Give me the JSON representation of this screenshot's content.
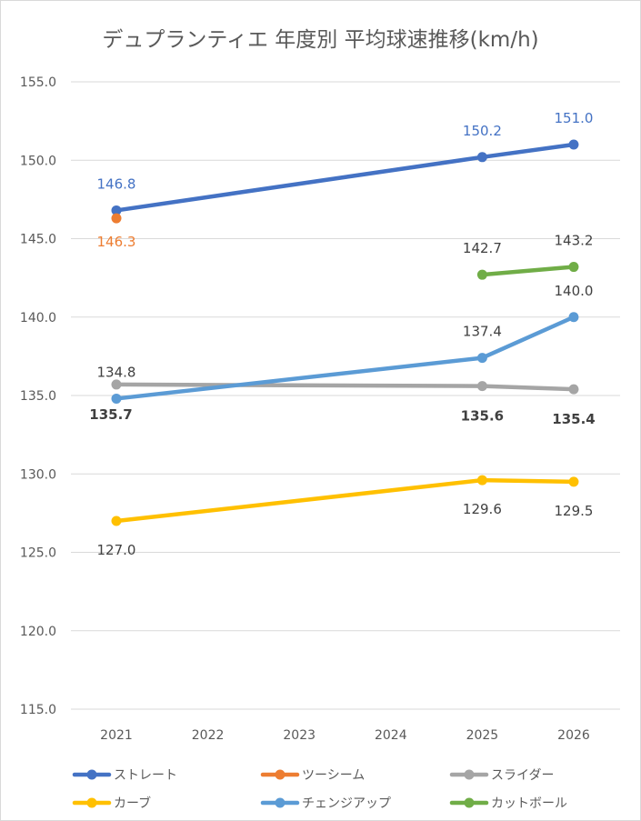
{
  "chart_data": {
    "type": "line",
    "title": "デュプランティエ 年度別 平均球速推移(km/h)",
    "categories": [
      "2021",
      "2022",
      "2023",
      "2024",
      "2025",
      "2026"
    ],
    "ylim": [
      115.0,
      155.0
    ],
    "yticks": [
      "115.0",
      "120.0",
      "125.0",
      "130.0",
      "135.0",
      "140.0",
      "145.0",
      "150.0",
      "155.0"
    ],
    "grid": true,
    "legend_position": "bottom",
    "series": [
      {
        "name": "ストレート",
        "color": "#4472C4",
        "points": [
          {
            "x": "2021",
            "y": 146.8,
            "label": "146.8"
          },
          {
            "x": "2025",
            "y": 150.2,
            "label": "150.2"
          },
          {
            "x": "2026",
            "y": 151.0,
            "label": "151.0"
          }
        ],
        "label_color": "#4472C4",
        "label_bold": false
      },
      {
        "name": "ツーシーム",
        "color": "#ED7D31",
        "points": [
          {
            "x": "2021",
            "y": 146.3,
            "label": "146.3"
          }
        ],
        "label_color": "#ED7D31",
        "label_bold": false
      },
      {
        "name": "スライダー",
        "color": "#A5A5A5",
        "points": [
          {
            "x": "2021",
            "y": 135.7,
            "label": "135.7"
          },
          {
            "x": "2025",
            "y": 135.6,
            "label": "135.6"
          },
          {
            "x": "2026",
            "y": 135.4,
            "label": "135.4"
          }
        ],
        "label_color": "#404040",
        "label_bold": true
      },
      {
        "name": "カーブ",
        "color": "#FFC000",
        "points": [
          {
            "x": "2021",
            "y": 127.0,
            "label": "127.0"
          },
          {
            "x": "2025",
            "y": 129.6,
            "label": "129.6"
          },
          {
            "x": "2026",
            "y": 129.5,
            "label": "129.5"
          }
        ],
        "label_color": "#404040",
        "label_bold": false
      },
      {
        "name": "チェンジアップ",
        "color": "#5B9BD5",
        "points": [
          {
            "x": "2021",
            "y": 134.8,
            "label": "134.8"
          },
          {
            "x": "2025",
            "y": 137.4,
            "label": "137.4"
          },
          {
            "x": "2026",
            "y": 140.0,
            "label": "140.0"
          }
        ],
        "label_color": "#404040",
        "label_bold": false
      },
      {
        "name": "カットボール",
        "color": "#70AD47",
        "points": [
          {
            "x": "2025",
            "y": 142.7,
            "label": "142.7"
          },
          {
            "x": "2026",
            "y": 143.2,
            "label": "143.2"
          }
        ],
        "label_color": "#404040",
        "label_bold": false
      }
    ]
  }
}
